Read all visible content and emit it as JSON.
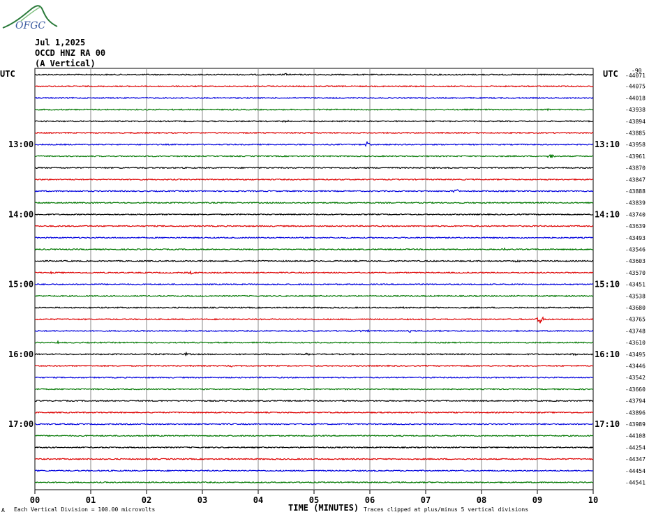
{
  "header": {
    "logo_text": "OFGC",
    "line1": "Jul 1,2025",
    "line2": "OCCD HNZ RA 00",
    "line3": "(A Vertical)"
  },
  "labels": {
    "left_utc": "UTC",
    "right_utc": "UTC",
    "right_top": "-90"
  },
  "footer": {
    "mark": "A",
    "division": "Each Vertical Division =  100.00 microvolts",
    "clipping": "Traces clipped at plus/minus 5 vertical divisions"
  },
  "colors": {
    "trace_cycle": [
      "#000000",
      "#dd0000",
      "#0000dd",
      "#007700"
    ],
    "grid": "#888888",
    "logo": "#2a7a3a"
  },
  "chart_data": {
    "type": "line",
    "title": "",
    "xlabel": "TIME (MINUTES)",
    "ylabel": "",
    "xlim": [
      0,
      10
    ],
    "x_ticks": [
      "00",
      "01",
      "02",
      "03",
      "04",
      "05",
      "06",
      "07",
      "08",
      "09",
      "10"
    ],
    "left_time_labels": [
      {
        "trace_index": 6,
        "label": "13:00"
      },
      {
        "trace_index": 12,
        "label": "14:00"
      },
      {
        "trace_index": 18,
        "label": "15:00"
      },
      {
        "trace_index": 24,
        "label": "16:00"
      },
      {
        "trace_index": 30,
        "label": "17:00"
      }
    ],
    "right_time_labels": [
      {
        "trace_index": 6,
        "label": "13:10"
      },
      {
        "trace_index": 12,
        "label": "14:10"
      },
      {
        "trace_index": 18,
        "label": "15:10"
      },
      {
        "trace_index": 24,
        "label": "16:10"
      },
      {
        "trace_index": 30,
        "label": "17:10"
      }
    ],
    "trace_offsets": [
      "-44071",
      "-44075",
      "-44018",
      "-43938",
      "-43894",
      "-43885",
      "-43958",
      "-43961",
      "-43870",
      "-43847",
      "-43888",
      "-43839",
      "-43740",
      "-43639",
      "-43493",
      "-43546",
      "-43603",
      "-43570",
      "-43451",
      "-43538",
      "-43680",
      "-43765",
      "-43748",
      "-43610",
      "-43495",
      "-43446",
      "-43542",
      "-43660",
      "-43794",
      "-43896",
      "-43989",
      "-44108",
      "-44254",
      "-44347",
      "-44454",
      "-44541"
    ],
    "series": [
      {
        "values": [
          {
            "x": 4.5,
            "amp": 0.3
          }
        ]
      },
      {
        "values": []
      },
      {
        "values": []
      },
      {
        "values": [
          {
            "x": 9.2,
            "amp": 0.3
          }
        ]
      },
      {
        "values": [
          {
            "x": 4.5,
            "amp": 0.3
          }
        ]
      },
      {
        "values": []
      },
      {
        "values": [
          {
            "x": 5.95,
            "amp": 0.6
          }
        ]
      },
      {
        "values": [
          {
            "x": 9.25,
            "amp": 0.6
          }
        ]
      },
      {
        "values": []
      },
      {
        "values": []
      },
      {
        "values": [
          {
            "x": 7.55,
            "amp": 0.5
          }
        ]
      },
      {
        "values": []
      },
      {
        "values": []
      },
      {
        "values": []
      },
      {
        "values": []
      },
      {
        "values": [
          {
            "x": 8.4,
            "amp": 0.3
          }
        ]
      },
      {
        "values": [
          {
            "x": 8.65,
            "amp": 0.4
          }
        ]
      },
      {
        "values": [
          {
            "x": 0.3,
            "amp": 0.3
          },
          {
            "x": 2.8,
            "amp": 0.3
          }
        ]
      },
      {
        "values": []
      },
      {
        "values": []
      },
      {
        "values": [
          {
            "x": 6.55,
            "amp": 0.4
          }
        ]
      },
      {
        "values": [
          {
            "x": 9.05,
            "amp": 1.2
          }
        ]
      },
      {
        "values": [
          {
            "x": 5.9,
            "amp": 0.4
          },
          {
            "x": 6.7,
            "amp": 0.3
          }
        ]
      },
      {
        "values": [
          {
            "x": 0.4,
            "amp": 0.3
          }
        ]
      },
      {
        "values": [
          {
            "x": 2.7,
            "amp": 0.4
          },
          {
            "x": 4.9,
            "amp": 0.4
          },
          {
            "x": 9.7,
            "amp": 0.4
          }
        ]
      },
      {
        "values": [
          {
            "x": 3.5,
            "amp": 0.3
          }
        ]
      },
      {
        "values": []
      },
      {
        "values": []
      },
      {
        "values": []
      },
      {
        "values": []
      },
      {
        "values": []
      },
      {
        "values": []
      },
      {
        "values": []
      },
      {
        "values": []
      },
      {
        "values": []
      },
      {
        "values": []
      }
    ]
  }
}
